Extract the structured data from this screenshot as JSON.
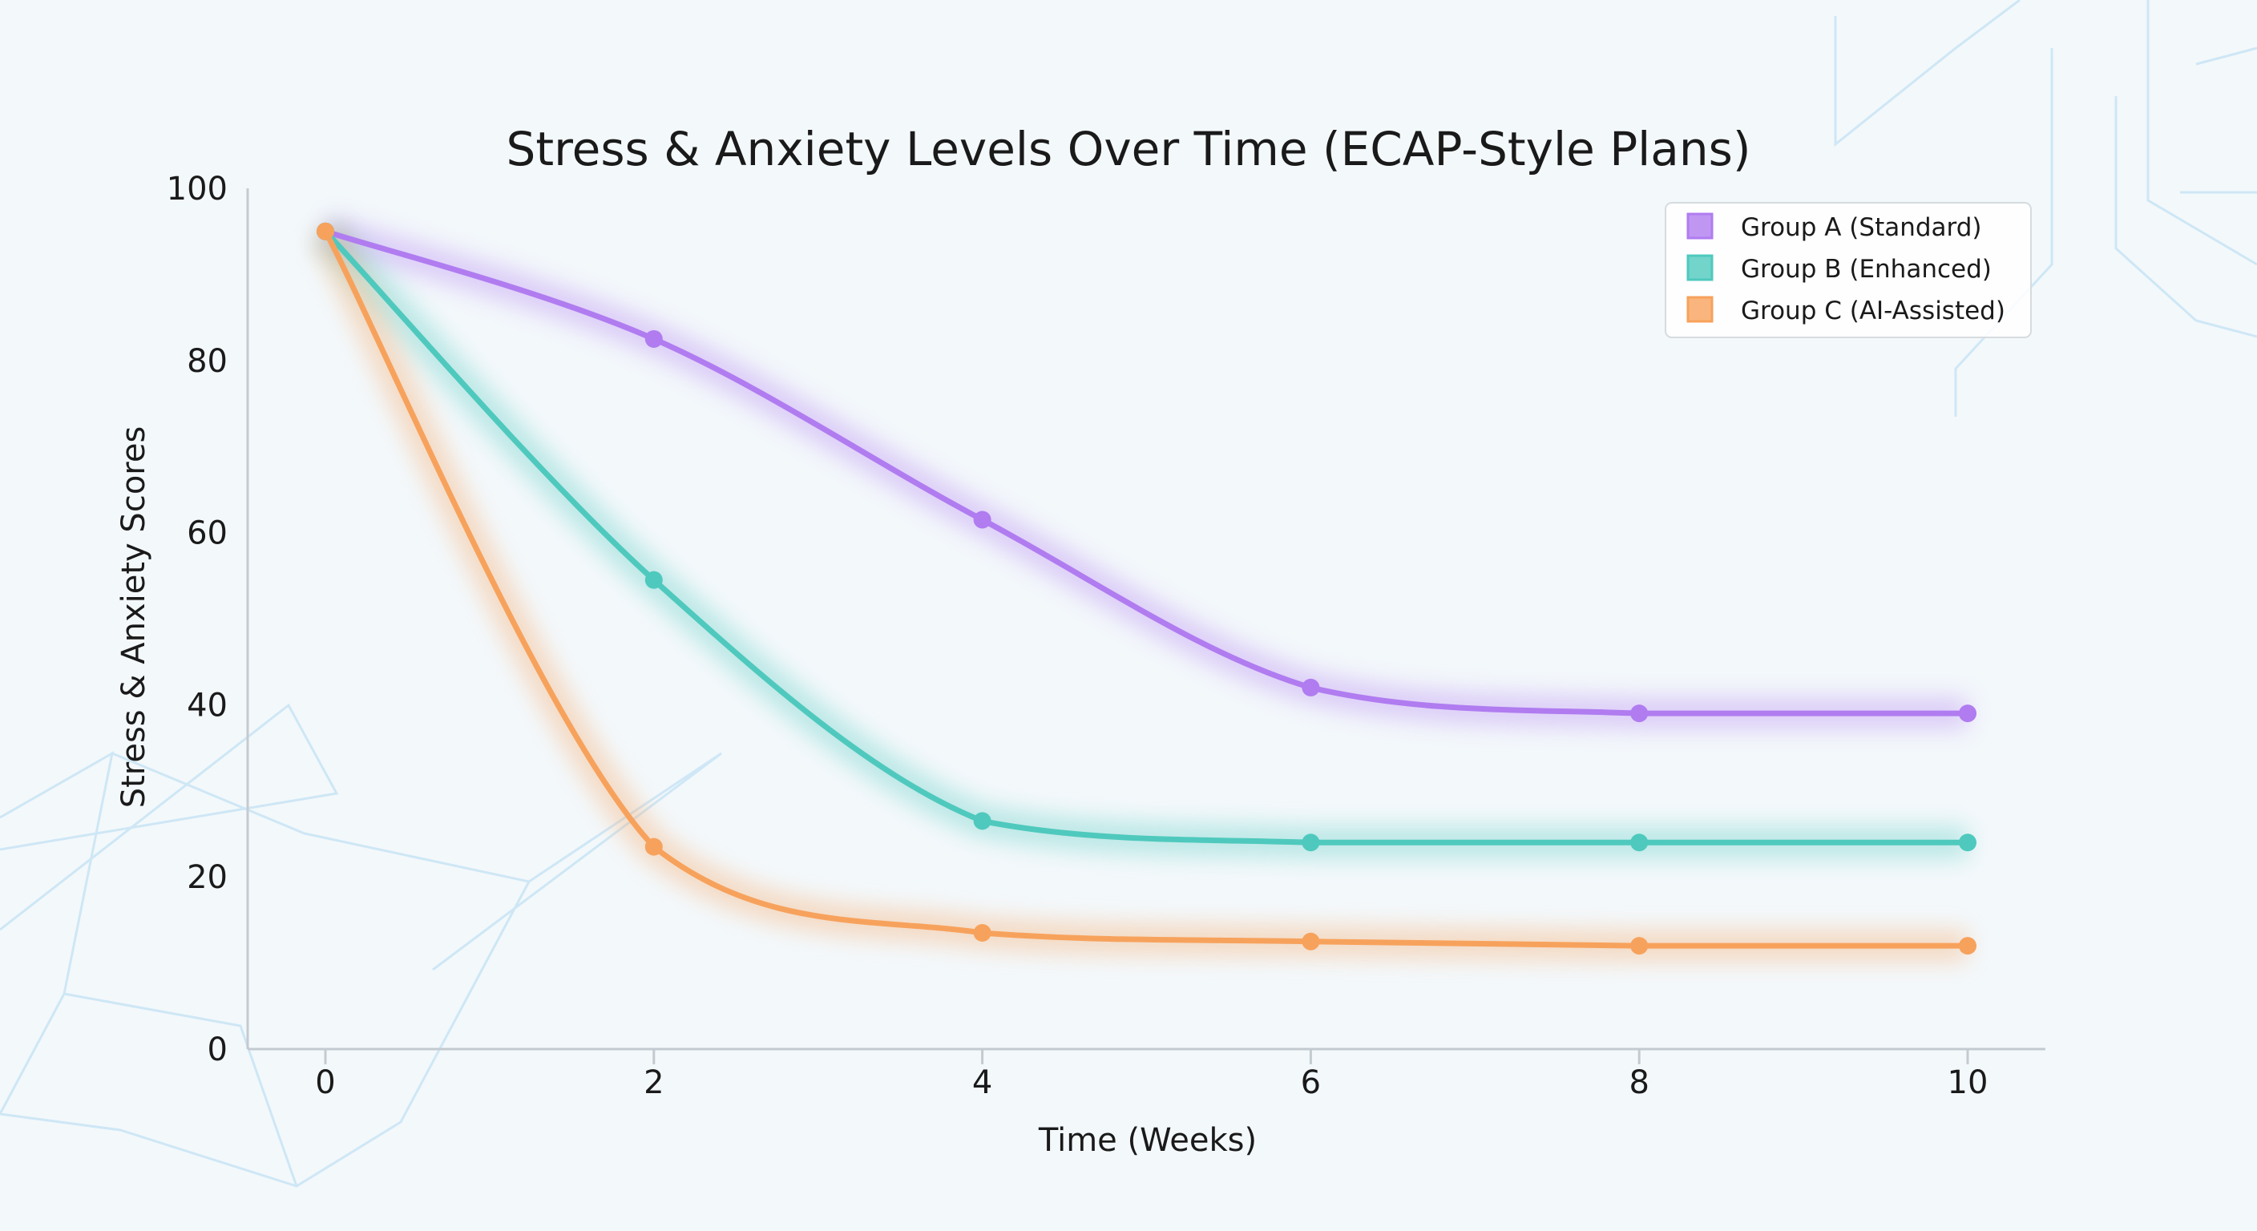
{
  "chart_data": {
    "type": "line",
    "title": "Stress & Anxiety Levels Over Time (ECAP-Style Plans)",
    "xlabel": "Time (Weeks)",
    "ylabel": "Stress & Anxiety Scores",
    "x": [
      0,
      2,
      4,
      6,
      8,
      10
    ],
    "xticks": [
      "0",
      "2",
      "4",
      "6",
      "8",
      "10"
    ],
    "yticks": [
      "0",
      "20",
      "40",
      "60",
      "80",
      "100"
    ],
    "xlim": [
      -0.5,
      10.5
    ],
    "ylim": [
      0,
      100
    ],
    "grid": false,
    "legend_position": "top-right",
    "series": [
      {
        "name": "Group A (Standard)",
        "color": "#b07cf0",
        "values": [
          95,
          82.5,
          61.5,
          42,
          39,
          39
        ]
      },
      {
        "name": "Group B (Enhanced)",
        "color": "#4fc9bd",
        "values": [
          95,
          54.5,
          26.5,
          24,
          24,
          24
        ]
      },
      {
        "name": "Group C (AI-Assisted)",
        "color": "#f7a25c",
        "values": [
          95,
          23.5,
          13.5,
          12.5,
          12,
          12
        ]
      }
    ]
  }
}
